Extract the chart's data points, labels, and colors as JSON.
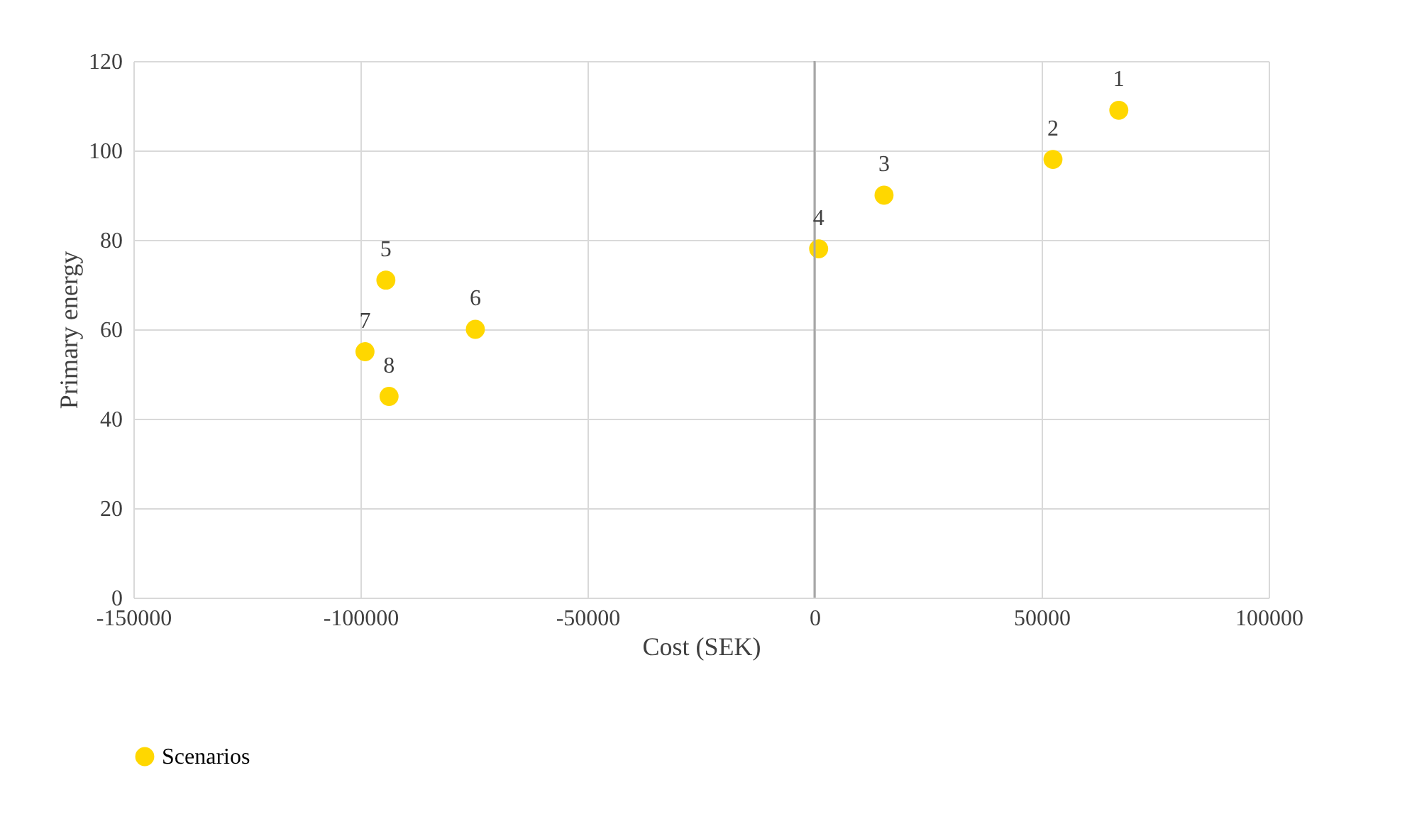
{
  "chart_data": {
    "type": "scatter",
    "xlabel": "Cost (SEK)",
    "ylabel": "Primary energy",
    "x": [
      67000,
      52500,
      15300,
      900,
      -94400,
      -74700,
      -99000,
      -93700
    ],
    "series": [
      {
        "name": "Scenarios",
        "color": "#ffd700",
        "values": [
          109,
          98,
          90,
          78,
          71,
          60,
          55,
          45
        ]
      }
    ],
    "xlim": [
      -150000,
      100000
    ],
    "xticks": [
      -150000,
      -100000,
      -50000,
      0,
      50000,
      100000
    ],
    "ylim": [
      0,
      120
    ],
    "yticks": [
      0,
      20,
      40,
      60,
      80,
      100,
      120
    ],
    "grid": true,
    "legend": "bottom",
    "marker": "circle",
    "ref_lines": [
      {
        "axis": "x",
        "value": 0,
        "color": "#a6a6a6"
      }
    ],
    "annotations": [
      {
        "text": "1",
        "x": 67000,
        "y": 109
      },
      {
        "text": "2",
        "x": 52500,
        "y": 98
      },
      {
        "text": "3",
        "x": 15300,
        "y": 90
      },
      {
        "text": "4",
        "x": 900,
        "y": 78
      },
      {
        "text": "5",
        "x": -94400,
        "y": 71
      },
      {
        "text": "6",
        "x": -74700,
        "y": 60
      },
      {
        "text": "7",
        "x": -99000,
        "y": 55
      },
      {
        "text": "8",
        "x": -93700,
        "y": 45
      }
    ]
  }
}
